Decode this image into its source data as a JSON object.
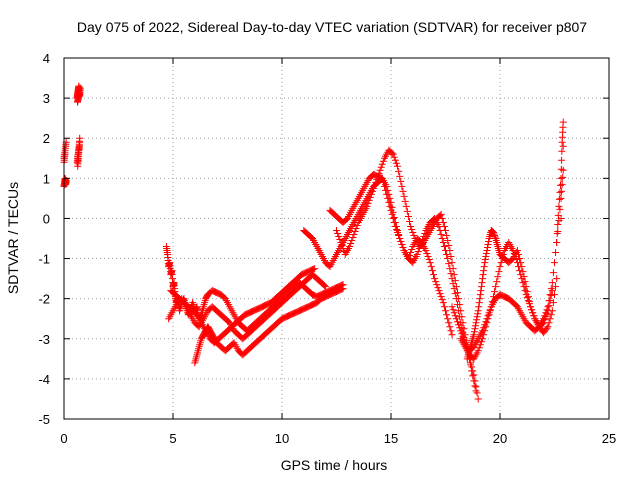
{
  "chart_data": {
    "type": "scatter",
    "title": "Day 075 of 2022, Sidereal Day-to-day VTEC variation (SDTVAR) for receiver p807",
    "xlabel": "GPS time / hours",
    "ylabel": "SDTVAR / TECUs",
    "xlim": [
      0,
      25
    ],
    "ylim": [
      -5,
      4
    ],
    "x_ticks": [
      0,
      5,
      10,
      15,
      20,
      25
    ],
    "x_tick_labels": [
      "0",
      "5",
      "10",
      "15",
      "20",
      "25"
    ],
    "y_ticks": [
      -5,
      -4,
      -3,
      -2,
      -1,
      0,
      1,
      2,
      3,
      4
    ],
    "y_tick_labels": [
      "-5",
      "-4",
      "-3",
      "-2",
      "-1",
      "0",
      "1",
      "2",
      "3",
      "4"
    ],
    "grid": true,
    "marker": "+",
    "series_color": "#ff0000",
    "series": [
      {
        "name": "SDTVAR",
        "x": [
          0.0,
          0.03,
          0.05,
          0.08,
          0.1,
          0.0,
          0.05,
          0.1,
          0.0,
          0.05,
          0.6,
          0.62,
          0.65,
          0.68,
          0.7,
          0.72,
          0.75,
          0.62,
          0.66,
          0.7,
          0.6,
          0.65,
          0.7,
          0.62,
          0.68,
          0.72,
          0.63,
          0.67,
          0.72,
          0.65,
          4.7,
          4.75,
          4.8,
          4.85,
          4.9,
          4.95,
          5.0,
          5.05,
          5.1,
          5.15,
          5.2,
          5.3,
          5.4,
          5.5,
          5.6,
          5.7,
          5.8,
          5.9,
          6.0,
          6.1,
          6.2,
          6.3,
          6.4,
          6.5,
          6.6,
          6.8,
          7.0,
          7.2,
          7.4,
          7.6,
          7.8,
          8.0,
          8.2,
          8.4,
          8.6,
          8.8,
          9.0,
          9.2,
          9.4,
          9.6,
          9.8,
          10.0,
          10.2,
          10.4,
          10.6,
          10.8,
          11.0,
          11.2,
          11.4,
          11.6,
          11.8,
          12.0,
          12.2,
          12.4,
          12.6,
          12.8,
          4.8,
          5.0,
          5.2,
          5.4,
          5.6,
          5.8,
          6.0,
          6.2,
          6.4,
          6.6,
          6.8,
          7.0,
          7.2,
          7.4,
          7.6,
          7.8,
          8.0,
          8.2,
          8.4,
          8.6,
          8.8,
          9.0,
          9.2,
          9.4,
          9.6,
          9.8,
          10.0,
          10.2,
          10.4,
          10.6,
          10.8,
          11.0,
          11.2,
          11.4,
          11.6,
          11.8,
          12.0,
          4.9,
          5.1,
          5.3,
          5.5,
          5.7,
          5.9,
          6.1,
          6.3,
          6.5,
          6.7,
          6.9,
          7.1,
          7.3,
          7.5,
          7.7,
          7.9,
          8.1,
          8.3,
          8.5,
          8.7,
          8.9,
          9.1,
          9.3,
          9.5,
          9.7,
          9.9,
          10.1,
          10.3,
          10.5,
          10.7,
          10.9,
          11.1,
          11.3,
          11.5,
          6.0,
          6.1,
          6.2,
          6.3,
          6.4,
          6.5,
          6.6,
          6.7,
          6.8,
          6.9,
          7.0,
          7.2,
          7.4,
          7.6,
          7.8,
          8.0,
          8.2,
          8.4,
          8.6,
          8.8,
          9.0,
          9.2,
          9.4,
          9.6,
          9.8,
          10.0,
          10.2,
          10.4,
          10.6,
          10.8,
          11.0,
          11.2,
          11.4,
          11.6,
          11.8,
          12.0,
          12.2,
          12.4,
          12.6,
          12.8,
          11.0,
          11.2,
          11.4,
          11.6,
          11.8,
          12.0,
          12.2,
          12.4,
          12.6,
          12.8,
          13.0,
          13.2,
          13.4,
          13.6,
          13.8,
          14.0,
          14.2,
          14.4,
          14.6,
          14.8,
          15.0,
          15.2,
          15.4,
          15.6,
          15.8,
          16.0,
          16.2,
          16.4,
          16.6,
          16.8,
          17.0,
          17.2,
          17.4,
          17.6,
          17.8,
          12.2,
          12.4,
          12.6,
          12.8,
          13.0,
          13.2,
          13.4,
          13.6,
          13.8,
          14.0,
          14.2,
          14.4,
          14.6,
          14.8,
          15.0,
          15.2,
          15.4,
          15.6,
          15.8,
          16.0,
          16.2,
          16.4,
          16.6,
          16.8,
          17.0,
          17.2,
          17.4,
          17.6,
          17.8,
          18.0,
          18.2,
          18.4,
          18.6,
          18.8,
          19.0,
          12.5,
          12.7,
          12.9,
          13.1,
          13.3,
          13.5,
          13.7,
          13.9,
          14.1,
          14.3,
          14.5,
          14.7,
          14.9,
          15.1,
          15.3,
          15.5,
          15.7,
          15.9,
          16.1,
          16.3,
          16.5,
          16.7,
          16.9,
          17.1,
          17.3,
          17.5,
          17.7,
          17.9,
          18.1,
          18.3,
          18.5,
          18.7,
          18.9,
          17.8,
          18.0,
          18.2,
          18.4,
          18.6,
          18.8,
          19.0,
          19.2,
          19.4,
          19.6,
          19.8,
          20.0,
          20.2,
          20.4,
          20.6,
          20.8,
          21.0,
          21.2,
          21.4,
          21.6,
          21.8,
          22.0,
          22.2,
          22.4,
          22.6,
          22.8,
          22.9,
          18.2,
          18.4,
          18.6,
          18.8,
          19.0,
          19.2,
          19.4,
          19.6,
          19.8,
          20.0,
          20.2,
          20.4,
          20.6,
          20.8,
          21.0,
          21.2,
          21.4,
          21.6,
          21.8,
          22.0,
          22.2,
          22.4,
          22.6,
          22.8,
          22.9,
          18.5,
          18.6,
          18.7,
          18.8,
          18.9,
          19.0,
          19.1,
          19.2,
          19.3,
          19.4,
          19.5,
          19.6,
          19.7,
          19.8,
          19.9,
          20.0,
          20.2,
          20.4,
          20.6,
          20.8,
          21.0,
          21.2,
          21.4,
          21.6,
          21.8,
          22.0,
          22.2,
          22.4,
          22.6,
          22.7,
          22.8,
          22.85,
          22.9
        ],
        "y": [
          0.8,
          0.9,
          1.0,
          0.85,
          0.95,
          1.5,
          1.7,
          1.9,
          1.4,
          1.6,
          3.0,
          3.1,
          3.2,
          3.3,
          3.15,
          3.05,
          3.25,
          2.9,
          3.0,
          3.1,
          1.4,
          1.6,
          1.8,
          1.5,
          1.7,
          2.0,
          1.3,
          1.55,
          1.9,
          1.45,
          -0.7,
          -0.9,
          -1.2,
          -1.1,
          -1.4,
          -1.3,
          -1.7,
          -1.6,
          -1.9,
          -2.1,
          -2.0,
          -2.3,
          -2.1,
          -2.0,
          -2.2,
          -2.4,
          -2.3,
          -2.1,
          -2.3,
          -2.2,
          -2.5,
          -2.4,
          -2.2,
          -2.0,
          -1.9,
          -1.8,
          -1.85,
          -1.9,
          -2.0,
          -2.2,
          -2.4,
          -2.6,
          -2.7,
          -2.8,
          -2.7,
          -2.6,
          -2.5,
          -2.4,
          -2.3,
          -2.2,
          -2.1,
          -2.0,
          -1.9,
          -1.8,
          -1.7,
          -1.6,
          -1.7,
          -1.8,
          -1.9,
          -1.95,
          -1.9,
          -1.85,
          -1.8,
          -1.75,
          -1.7,
          -1.65,
          -2.5,
          -2.3,
          -2.1,
          -2.0,
          -2.2,
          -2.4,
          -2.6,
          -2.7,
          -2.5,
          -2.3,
          -2.2,
          -2.3,
          -2.4,
          -2.5,
          -2.6,
          -2.8,
          -2.9,
          -3.0,
          -2.9,
          -2.8,
          -2.7,
          -2.6,
          -2.5,
          -2.4,
          -2.3,
          -2.2,
          -2.1,
          -2.0,
          -1.9,
          -1.8,
          -1.7,
          -1.6,
          -1.5,
          -1.4,
          -1.5,
          -1.6,
          -1.7,
          -1.8,
          -1.9,
          -2.0,
          -2.1,
          -2.2,
          -2.3,
          -2.4,
          -2.6,
          -2.8,
          -3.0,
          -3.1,
          -3.0,
          -2.9,
          -2.8,
          -2.7,
          -2.6,
          -2.5,
          -2.4,
          -2.35,
          -2.3,
          -2.25,
          -2.2,
          -2.15,
          -2.1,
          -2.0,
          -1.9,
          -1.8,
          -1.7,
          -1.6,
          -1.5,
          -1.4,
          -1.35,
          -1.3,
          -1.25,
          -3.6,
          -3.4,
          -3.2,
          -3.0,
          -2.9,
          -2.8,
          -2.7,
          -2.8,
          -2.9,
          -3.0,
          -3.1,
          -3.2,
          -3.3,
          -3.2,
          -3.1,
          -3.3,
          -3.4,
          -3.3,
          -3.2,
          -3.1,
          -3.0,
          -2.9,
          -2.8,
          -2.7,
          -2.6,
          -2.5,
          -2.45,
          -2.4,
          -2.35,
          -2.3,
          -2.25,
          -2.2,
          -2.15,
          -2.1,
          -2.0,
          -1.95,
          -1.9,
          -1.85,
          -1.8,
          -1.75,
          -0.3,
          -0.4,
          -0.5,
          -0.7,
          -0.9,
          -1.1,
          -1.2,
          -1.0,
          -0.8,
          -0.6,
          -0.4,
          -0.2,
          0.0,
          0.2,
          0.4,
          0.6,
          0.8,
          0.9,
          1.0,
          0.8,
          0.4,
          -0.1,
          -0.5,
          -0.8,
          -1.0,
          -0.7,
          -0.5,
          -0.6,
          -0.8,
          -1.1,
          -1.5,
          -1.8,
          -2.1,
          -2.5,
          -2.9,
          0.2,
          0.1,
          0.0,
          -0.1,
          0.0,
          0.2,
          0.4,
          0.6,
          0.8,
          1.0,
          1.1,
          1.05,
          1.0,
          0.6,
          0.2,
          -0.2,
          -0.5,
          -0.8,
          -1.0,
          -1.1,
          -0.9,
          -0.6,
          -0.3,
          -0.1,
          0.0,
          -0.2,
          -0.6,
          -1.0,
          -1.5,
          -2.0,
          -2.6,
          -3.1,
          -3.5,
          -3.9,
          -4.5,
          -0.3,
          -0.6,
          -0.9,
          -0.7,
          -0.4,
          -0.1,
          0.1,
          0.3,
          0.6,
          0.9,
          1.2,
          1.5,
          1.7,
          1.6,
          1.3,
          0.8,
          0.3,
          -0.2,
          -0.5,
          -0.7,
          -0.6,
          -0.4,
          -0.2,
          0.0,
          0.1,
          -0.3,
          -0.8,
          -1.4,
          -2.0,
          -2.6,
          -3.2,
          -3.8,
          -4.3,
          -2.2,
          -2.5,
          -2.8,
          -3.1,
          -3.3,
          -3.2,
          -3.0,
          -2.8,
          -2.5,
          -2.2,
          -2.0,
          -1.9,
          -1.95,
          -2.0,
          -2.1,
          -2.2,
          -2.4,
          -2.6,
          -2.7,
          -2.8,
          -2.7,
          -2.5,
          -2.2,
          -1.6,
          -0.6,
          0.5,
          1.2,
          -3.0,
          -3.2,
          -3.4,
          -3.5,
          -3.3,
          -3.0,
          -2.6,
          -2.2,
          -1.7,
          -1.2,
          -0.8,
          -0.6,
          -0.8,
          -1.1,
          -1.5,
          -1.9,
          -2.2,
          -2.5,
          -2.7,
          -2.85,
          -2.7,
          -2.3,
          -1.5,
          0.0,
          1.8,
          -3.5,
          -3.3,
          -3.1,
          -2.9,
          -2.6,
          -2.3,
          -1.9,
          -1.5,
          -1.1,
          -0.8,
          -0.5,
          -0.3,
          -0.35,
          -0.5,
          -0.7,
          -0.9,
          -1.0,
          -1.1,
          -1.0,
          -0.8,
          -1.2,
          -1.7,
          -2.2,
          -2.5,
          -2.7,
          -2.6,
          -2.3,
          -1.8,
          -0.6,
          0.3,
          1.0,
          1.9,
          2.4
        ]
      }
    ]
  }
}
